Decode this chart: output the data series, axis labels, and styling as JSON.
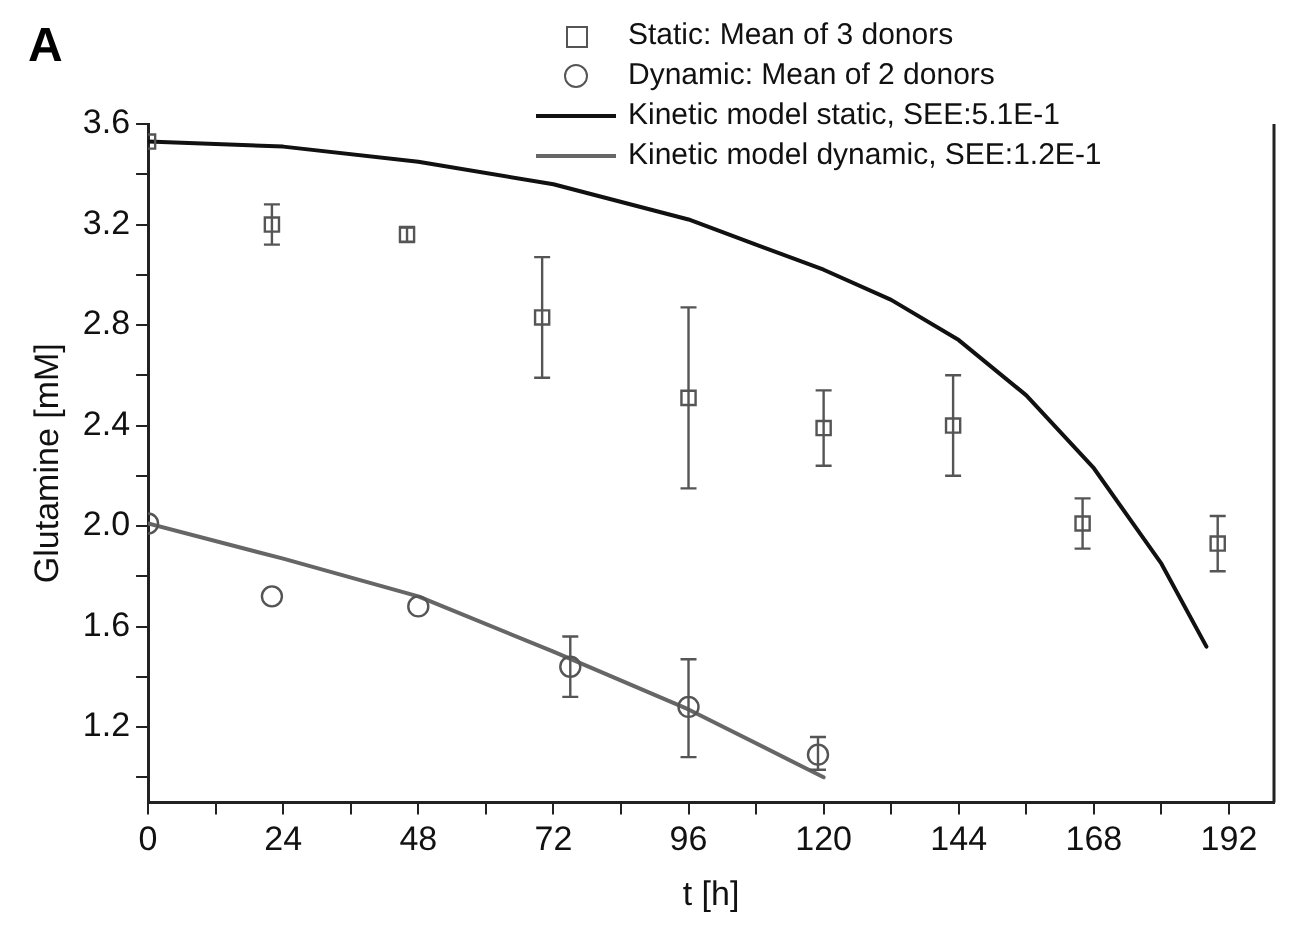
{
  "chart_data": {
    "type": "scatter",
    "xlabel": "t [h]",
    "ylabel": "Glutamine [mM]",
    "annotations": [
      "A"
    ],
    "xlim": [
      0,
      200
    ],
    "xticks": [
      0,
      {
        "value": 12,
        "label": null
      },
      24,
      {
        "value": 36,
        "label": null
      },
      48,
      {
        "value": 60,
        "label": null
      },
      72,
      {
        "value": 84,
        "label": null
      },
      96,
      {
        "value": 108,
        "label": null
      },
      120,
      {
        "value": 132,
        "label": null
      },
      144,
      {
        "value": 156,
        "label": null
      },
      168,
      {
        "value": 180,
        "label": null
      },
      192
    ],
    "ylim": [
      0.9,
      3.6
    ],
    "yticks": [
      {
        "value": 1.0,
        "label": null
      },
      1.2,
      {
        "value": 1.4,
        "label": null
      },
      1.6,
      {
        "value": 1.8,
        "label": null
      },
      {
        "value": 2,
        "label": "2.0"
      },
      {
        "value": 2.2,
        "label": null
      },
      2.4,
      {
        "value": 2.6,
        "label": null
      },
      2.8,
      {
        "value": 3.0,
        "label": null
      },
      3.2,
      {
        "value": 3.4,
        "label": null
      },
      3.6
    ],
    "grid": false,
    "legend": "top right",
    "series": [
      {
        "name": "Static: Mean of 3 donors",
        "marker": "square",
        "color": "#555555",
        "x": [
          0,
          22,
          46,
          70,
          96,
          120,
          143,
          166,
          190
        ],
        "values": [
          3.53,
          3.2,
          3.16,
          2.83,
          2.51,
          2.39,
          2.4,
          2.01,
          1.93
        ],
        "errors": [
          null,
          [
            3.12,
            3.28
          ],
          [
            3.13,
            3.19
          ],
          [
            2.59,
            3.07
          ],
          [
            2.15,
            2.87
          ],
          [
            2.24,
            2.54
          ],
          [
            2.2,
            2.6
          ],
          [
            1.91,
            2.11
          ],
          [
            1.82,
            2.04
          ]
        ]
      },
      {
        "name": "Dynamic: Mean of 2 donors",
        "marker": "circle",
        "color": "#555555",
        "x": [
          0,
          22,
          48,
          75,
          96,
          119
        ],
        "values": [
          2.01,
          1.72,
          1.68,
          1.44,
          1.28,
          1.09
        ],
        "errors": [
          null,
          null,
          null,
          [
            1.32,
            1.56
          ],
          [
            1.08,
            1.47
          ],
          [
            1.03,
            1.16
          ]
        ]
      },
      {
        "name": "Kinetic model static, SEE:5.1E-1",
        "type": "line",
        "marker": "none",
        "color": "#111111",
        "x": [
          0,
          24,
          48,
          72,
          96,
          120,
          132,
          144,
          156,
          168,
          180,
          188
        ],
        "values": [
          3.53,
          3.51,
          3.45,
          3.36,
          3.22,
          3.02,
          2.9,
          2.74,
          2.52,
          2.23,
          1.85,
          1.52
        ]
      },
      {
        "name": "Kinetic model dynamic, SEE:1.2E-1",
        "type": "line",
        "marker": "none",
        "color": "#666666",
        "x": [
          0,
          24,
          48,
          72,
          96,
          120
        ],
        "values": [
          2.01,
          1.87,
          1.72,
          1.5,
          1.27,
          1.0
        ]
      }
    ]
  }
}
